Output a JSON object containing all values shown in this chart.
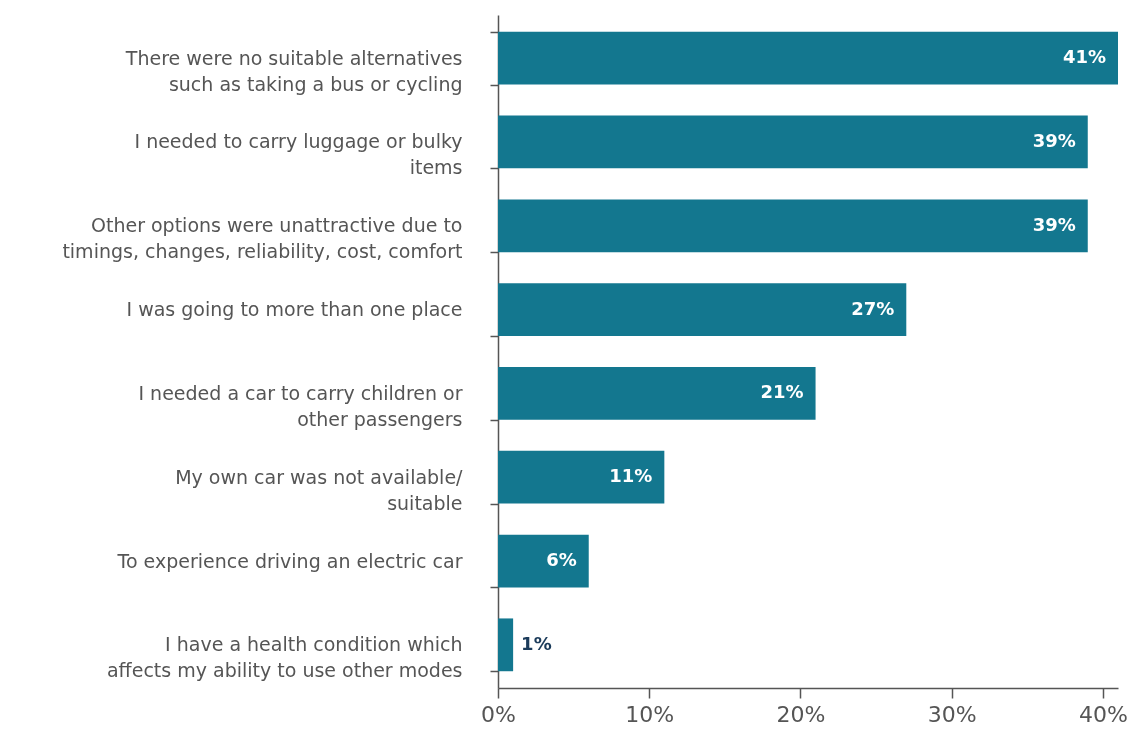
{
  "chart_data": {
    "type": "bar",
    "orientation": "horizontal",
    "categories": [
      "There were no suitable alternatives\nsuch as taking a bus or cycling",
      "I needed to carry luggage or bulky\nitems",
      "Other options were unattractive due to\ntimings, changes, reliability, cost, comfort",
      "I was going to more than one place",
      "I needed a car to carry children or\nother passengers",
      "My own car was not available/\nsuitable",
      "To experience driving an electric car",
      "I have a health condition which\naffects my ability to use other modes"
    ],
    "values": [
      41,
      39,
      39,
      27,
      21,
      11,
      6,
      1
    ],
    "value_labels": [
      "41%",
      "39%",
      "39%",
      "27%",
      "21%",
      "11%",
      "6%",
      "1%"
    ],
    "color": "#13778f",
    "xlim": [
      0,
      41
    ],
    "xticks": [
      {
        "value": 0,
        "label": "0%"
      },
      {
        "value": 10,
        "label": "10%"
      },
      {
        "value": 20,
        "label": "20%"
      },
      {
        "value": 30,
        "label": "30%"
      },
      {
        "value": 40,
        "label": "40%"
      }
    ],
    "grid": false
  }
}
